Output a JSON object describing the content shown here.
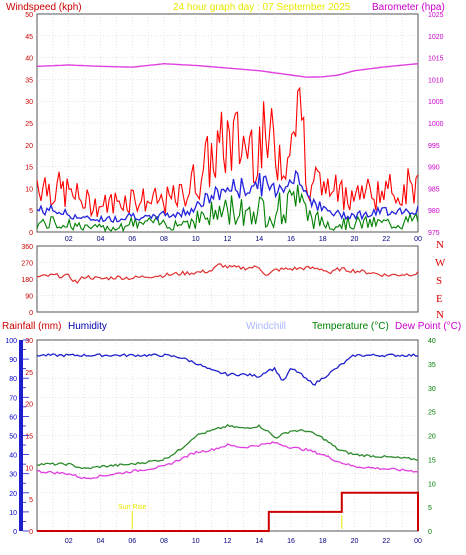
{
  "colors": {
    "wind": "#ff0000",
    "gust_fill": "#ee0000",
    "wind_avg": "#2222dd",
    "wind_low": "#008000",
    "barometer": "#e040e0",
    "direction": "#e03030",
    "humidity": "#2222cc",
    "temperature": "#2e8b2e",
    "dewpoint": "#e040e0",
    "rainfall": "#cc0000",
    "grid": "#c8c8c8",
    "axis_red": "#cc0000",
    "axis_magenta": "#cc00cc",
    "axis_green": "#008000",
    "axis_blue": "#0000cc",
    "title": "#e8e800",
    "windchill": "#aab8ff",
    "sunrise": "#e8e800"
  },
  "header": {
    "windspeed_label": "Windspeed (kph)",
    "title": "24 hour graph day : 07 September 2025",
    "barometer_label": "Barometer (hpa)"
  },
  "lower_header": {
    "rainfall_label": "Rainfall (mm)",
    "humidity_label": "Humidity",
    "windchill_label": "Windchill",
    "temperature_label": "Temperature (°C)",
    "dewpoint_label": "Dew Point (°C)"
  },
  "annotations": {
    "sunrise": "Sun Rise"
  },
  "direction_labels": [
    "N",
    "W",
    "S",
    "E",
    "N"
  ],
  "chart_data": [
    {
      "type": "line",
      "title": "24 hour graph day : 07 September 2025",
      "ylabel": "Windspeed (kph)",
      "y2label": "Barometer (hpa)",
      "xticks": [
        "02",
        "04",
        "06",
        "08",
        "10",
        "12",
        "14",
        "16",
        "18",
        "20",
        "22",
        "00"
      ],
      "yticks": [
        "0",
        "5",
        "10",
        "15",
        "20",
        "25",
        "30",
        "35",
        "40",
        "45",
        "50"
      ],
      "y2ticks": [
        "975",
        "980",
        "985",
        "990",
        "995",
        "1000",
        "1005",
        "1010",
        "1015",
        "1020",
        "1025"
      ],
      "xlim": [
        0,
        24
      ],
      "ylim": [
        0,
        50
      ],
      "y2lim": [
        975,
        1025
      ],
      "grid": true,
      "series": [
        {
          "role": "gust",
          "axis": "left",
          "x": [
            0,
            1,
            2,
            3,
            4,
            5,
            6,
            7,
            8,
            9,
            10,
            11,
            12,
            13,
            14,
            15,
            16,
            16.5,
            17,
            18,
            19,
            20,
            21,
            22,
            23,
            24
          ],
          "values": [
            12,
            10,
            9,
            7,
            6,
            7,
            8,
            7,
            7,
            8,
            12,
            17,
            21,
            20,
            21,
            20,
            18,
            35,
            14,
            10,
            9,
            9,
            9,
            9,
            10,
            11
          ]
        },
        {
          "role": "average",
          "axis": "left",
          "x": [
            0,
            1,
            2,
            3,
            4,
            5,
            6,
            7,
            8,
            9,
            10,
            11,
            12,
            13,
            14,
            15,
            16,
            16.5,
            17,
            18,
            19,
            20,
            21,
            22,
            23,
            24
          ],
          "values": [
            5,
            5,
            4,
            3,
            3,
            3,
            4,
            3,
            4,
            4,
            6,
            8,
            10,
            10,
            11,
            10,
            12,
            14,
            9,
            5,
            4,
            4,
            4,
            5,
            5,
            5
          ]
        },
        {
          "role": "low",
          "axis": "left",
          "x": [
            0,
            1,
            2,
            3,
            4,
            5,
            6,
            7,
            8,
            9,
            10,
            11,
            12,
            13,
            14,
            15,
            16,
            16.5,
            17,
            18,
            19,
            20,
            21,
            22,
            23,
            24
          ],
          "values": [
            2,
            2,
            2,
            1,
            1,
            1,
            2,
            2,
            2,
            2,
            3,
            4,
            5,
            5,
            5,
            5,
            6,
            7,
            4,
            2,
            2,
            2,
            2,
            2,
            2,
            3
          ]
        },
        {
          "role": "barometer",
          "axis": "right",
          "x": [
            0,
            2,
            4,
            6,
            8,
            10,
            12,
            14,
            16,
            17,
            18,
            19,
            20,
            22,
            24
          ],
          "values": [
            1013,
            1013.3,
            1013,
            1012.8,
            1013.6,
            1013.2,
            1012.6,
            1012,
            1011,
            1010.5,
            1010.6,
            1011,
            1012,
            1012.9,
            1013.6
          ]
        }
      ]
    },
    {
      "type": "line",
      "xlim": [
        0,
        24
      ],
      "ylim": [
        0,
        360
      ],
      "yticks": [
        "0",
        "90",
        "180",
        "270",
        "360"
      ],
      "grid": true,
      "series": [
        {
          "role": "direction",
          "x": [
            0,
            1,
            2,
            2.5,
            3,
            4,
            5,
            6,
            7,
            8,
            9,
            10,
            11,
            11.5,
            12,
            13,
            14,
            14.5,
            15,
            16,
            17,
            18,
            18.5,
            19,
            20,
            21,
            22,
            23,
            24
          ],
          "values": [
            190,
            200,
            195,
            160,
            195,
            180,
            190,
            185,
            195,
            200,
            210,
            215,
            225,
            260,
            245,
            240,
            245,
            195,
            230,
            235,
            240,
            235,
            210,
            235,
            225,
            215,
            200,
            205,
            210
          ]
        }
      ]
    },
    {
      "type": "line",
      "xlim": [
        0,
        24
      ],
      "xticks": [
        "02",
        "04",
        "06",
        "08",
        "10",
        "12",
        "14",
        "16",
        "18",
        "20",
        "22",
        "00"
      ],
      "rain_ticks": [
        "0",
        "5",
        "10",
        "15",
        "20",
        "25",
        "30"
      ],
      "humidity_ticks": [
        "0",
        "10",
        "20",
        "30",
        "40",
        "50",
        "60",
        "70",
        "80",
        "90",
        "100"
      ],
      "temp_ticks": [
        "0",
        "5",
        "10",
        "15",
        "20",
        "25",
        "30",
        "35",
        "40"
      ],
      "rain_lim": [
        0,
        30
      ],
      "humidity_lim": [
        0,
        100
      ],
      "temp_lim": [
        0,
        40
      ],
      "grid": true,
      "series": [
        {
          "role": "humidity",
          "axis": "humidity",
          "x": [
            0,
            2,
            4,
            6,
            8,
            9,
            10,
            11,
            12,
            13,
            14,
            14.5,
            15,
            15.5,
            16,
            16.5,
            17,
            17.5,
            18,
            19,
            20,
            22,
            24
          ],
          "values": [
            92,
            92,
            92,
            92,
            92,
            91,
            88,
            84,
            82,
            82,
            81,
            84,
            85,
            78,
            85,
            83,
            79,
            77,
            80,
            86,
            92,
            92,
            92
          ]
        },
        {
          "role": "temperature",
          "axis": "temp",
          "x": [
            0,
            2,
            3,
            4,
            6,
            8,
            9,
            10,
            11,
            12,
            13,
            14,
            14.5,
            15,
            16,
            17,
            18,
            19,
            20,
            22,
            24
          ],
          "values": [
            14,
            14,
            13,
            13.5,
            14,
            15,
            17,
            20,
            21,
            22,
            21.5,
            22,
            21,
            19.5,
            21,
            21,
            19.5,
            17,
            16,
            15.5,
            15
          ]
        },
        {
          "role": "dewpoint",
          "axis": "temp",
          "x": [
            0,
            2,
            3,
            4,
            6,
            8,
            9,
            10,
            11,
            12,
            13,
            14,
            15,
            16,
            17,
            18,
            19,
            20,
            22,
            24
          ],
          "values": [
            12.5,
            12,
            11,
            11.5,
            12.5,
            13.5,
            15,
            16.5,
            17,
            18,
            17.5,
            18,
            18.5,
            17.5,
            17,
            16,
            14.5,
            13.5,
            13,
            12.5
          ]
        },
        {
          "role": "rainfall",
          "axis": "rain",
          "x": [
            0,
            14.6,
            14.6,
            19.2,
            19.2,
            24,
            24
          ],
          "values": [
            0,
            0,
            3,
            3,
            6,
            6,
            0
          ]
        }
      ],
      "sunrise_hour": 6
    }
  ]
}
